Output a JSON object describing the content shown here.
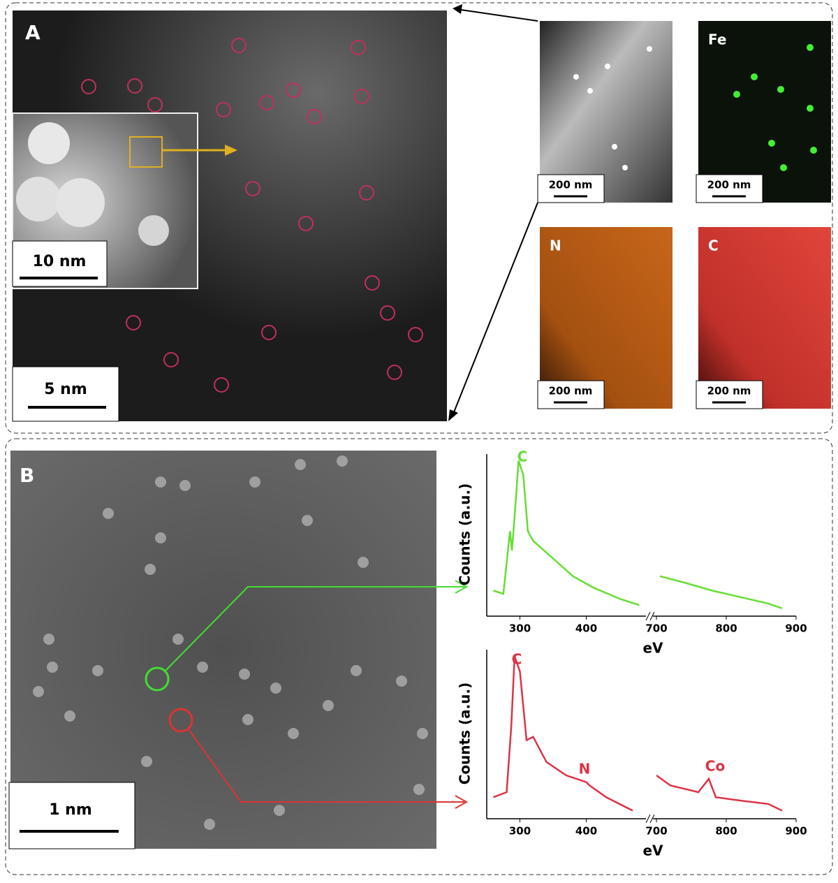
{
  "panel_a": {
    "label": "A",
    "scale_bar": "5 nm",
    "inset_scale_bar": "10 nm",
    "maps": [
      {
        "scale_bar": "200 nm"
      },
      {
        "label": "Fe",
        "scale_bar": "200 nm"
      },
      {
        "label": "N",
        "scale_bar": "200 nm"
      },
      {
        "label": "C",
        "scale_bar": "200 nm"
      }
    ]
  },
  "panel_b": {
    "label": "B",
    "scale_bar": "1 nm",
    "spectra": [
      {
        "type": "line",
        "color": "#66dd33",
        "ylabel": "Counts (a.u.)",
        "xlabel": "eV",
        "xlim_segments": [
          [
            250,
            490
          ],
          [
            695,
            900
          ]
        ],
        "xticks": [
          300,
          400,
          700,
          800,
          900
        ],
        "ylim": [
          0,
          100
        ],
        "x": [
          260,
          275,
          285,
          288,
          292,
          298,
          305,
          312,
          320,
          350,
          380,
          410,
          450,
          480,
          600,
          705,
          740,
          780,
          820,
          860,
          880
        ],
        "values": [
          15,
          13,
          52,
          40,
          61,
          96,
          87,
          52,
          46,
          35,
          24,
          17,
          10,
          6,
          null,
          24,
          20,
          15,
          11,
          7,
          4
        ],
        "annotations": [
          "C"
        ]
      },
      {
        "type": "line",
        "color": "#dd3344",
        "ylabel": "Counts (a.u.)",
        "xlabel": "eV",
        "xlim_segments": [
          [
            250,
            490
          ],
          [
            695,
            900
          ]
        ],
        "xticks": [
          300,
          400,
          700,
          800,
          900
        ],
        "ylim": [
          0,
          100
        ],
        "x": [
          260,
          280,
          287,
          292,
          300,
          310,
          320,
          340,
          370,
          400,
          405,
          430,
          470,
          600,
          700,
          720,
          760,
          775,
          785,
          820,
          860,
          880
        ],
        "values": [
          12,
          15,
          54,
          96,
          87,
          46,
          48,
          33,
          25,
          21,
          19,
          12,
          4,
          null,
          25,
          19,
          15,
          23,
          12,
          10,
          8,
          4
        ],
        "annotations": [
          "C",
          "N",
          "Co"
        ]
      }
    ]
  }
}
